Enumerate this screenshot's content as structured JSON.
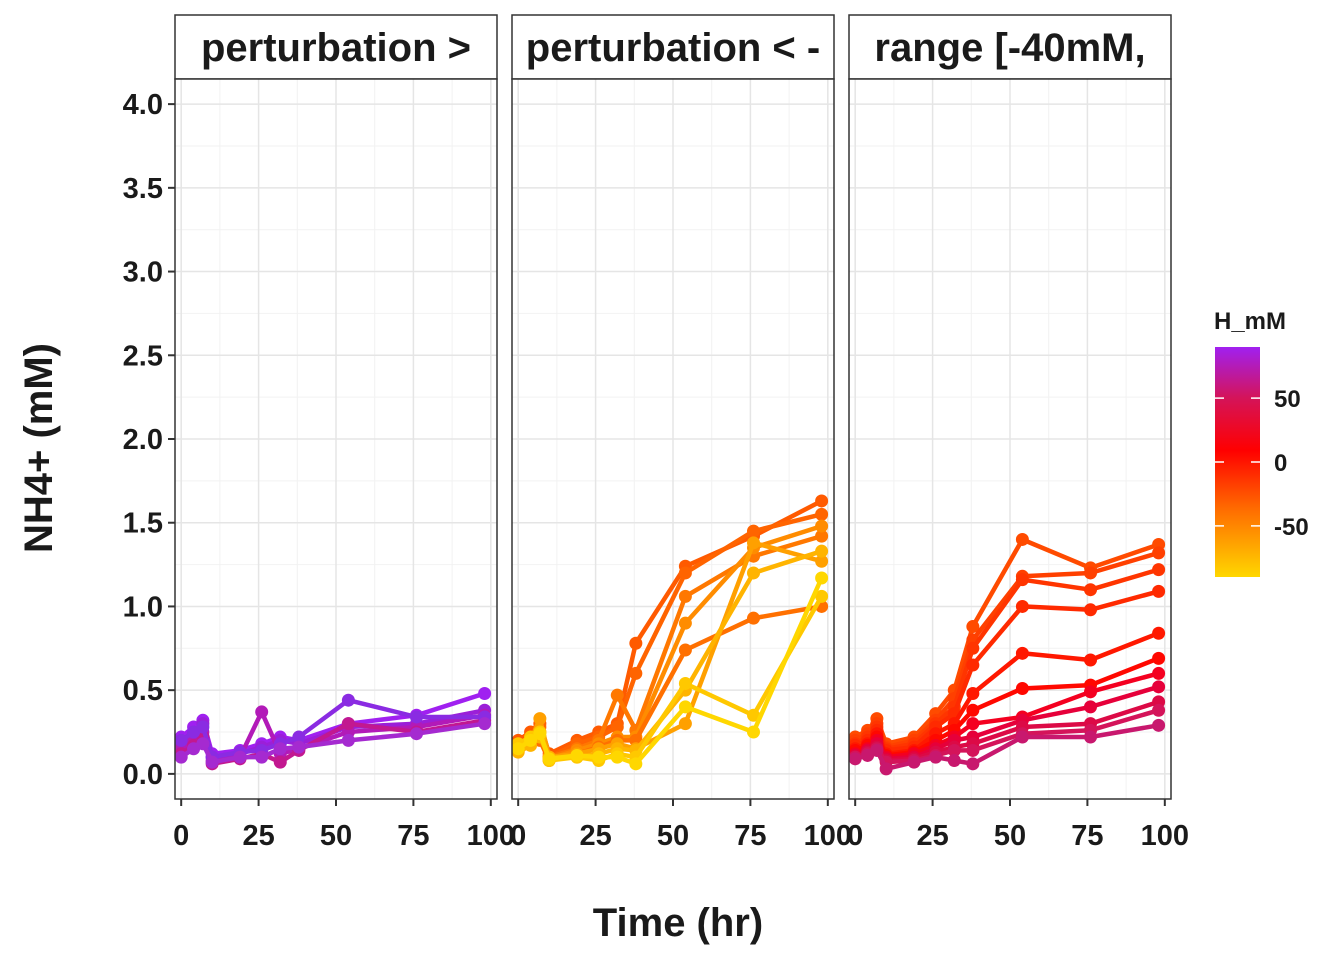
{
  "chart_data": {
    "type": "line",
    "xlabel": "Time (hr)",
    "ylabel": "NH4+ (mM)",
    "xlim": [
      -2,
      102
    ],
    "ylim": [
      -0.15,
      4.15
    ],
    "x_ticks": [
      0,
      25,
      50,
      75,
      100
    ],
    "x_tick_labels": [
      "0",
      "25",
      "50",
      "75",
      "100"
    ],
    "y_ticks": [
      0.0,
      0.5,
      1.0,
      1.5,
      2.0,
      2.5,
      3.0,
      3.5,
      4.0
    ],
    "y_tick_labels": [
      "0.0",
      "0.5",
      "1.0",
      "1.5",
      "2.0",
      "2.5",
      "3.0",
      "3.5",
      "4.0"
    ],
    "grid": true,
    "points_shown": true,
    "legend": {
      "title": "H_mM",
      "position": "right",
      "type": "colorbar",
      "range": [
        -90,
        90
      ],
      "ticks": [
        50,
        0,
        -50
      ],
      "tick_labels": [
        "50",
        "0",
        "-50"
      ],
      "colors": [
        "#ffd700",
        "#ff6a00",
        "#ff0000",
        "#d4145a",
        "#a020f0"
      ]
    },
    "panels": [
      {
        "strip_label": "perturbation >",
        "series": [
          {
            "color": "#a020f0",
            "x": [
              0,
              4,
              7,
              10,
              19,
              26,
              32,
              38,
              54,
              76,
              98
            ],
            "y": [
              0.22,
              0.28,
              0.32,
              0.12,
              0.14,
              0.18,
              0.22,
              0.2,
              0.3,
              0.35,
              0.48
            ]
          },
          {
            "color": "#9b1fd8",
            "x": [
              0,
              4,
              7,
              10,
              19,
              26,
              32,
              38,
              54,
              76,
              98
            ],
            "y": [
              0.18,
              0.24,
              0.3,
              0.1,
              0.12,
              0.16,
              0.2,
              0.18,
              0.28,
              0.3,
              0.38
            ]
          },
          {
            "color": "#b21ab8",
            "x": [
              0,
              4,
              7,
              10,
              19,
              26,
              32,
              38,
              54,
              76,
              98
            ],
            "y": [
              0.15,
              0.2,
              0.25,
              0.08,
              0.1,
              0.37,
              0.12,
              0.15,
              0.25,
              0.28,
              0.35
            ]
          },
          {
            "color": "#c21890",
            "x": [
              0,
              4,
              7,
              10,
              19,
              26,
              32,
              38,
              54,
              76,
              98
            ],
            "y": [
              0.12,
              0.17,
              0.22,
              0.06,
              0.09,
              0.12,
              0.07,
              0.14,
              0.3,
              0.25,
              0.32
            ]
          },
          {
            "color": "#8a2be2",
            "x": [
              0,
              4,
              7,
              10,
              19,
              26,
              32,
              38,
              54,
              76,
              98
            ],
            "y": [
              0.2,
              0.25,
              0.28,
              0.1,
              0.13,
              0.14,
              0.18,
              0.22,
              0.44,
              0.34,
              0.34
            ]
          },
          {
            "color": "#a52ad0",
            "x": [
              0,
              4,
              7,
              10,
              19,
              26,
              32,
              38,
              54,
              76,
              98
            ],
            "y": [
              0.1,
              0.15,
              0.18,
              0.07,
              0.1,
              0.1,
              0.15,
              0.16,
              0.2,
              0.24,
              0.3
            ]
          }
        ]
      },
      {
        "strip_label": "perturbation < -",
        "series": [
          {
            "color": "#ff5a00",
            "x": [
              0,
              4,
              7,
              10,
              19,
              26,
              32,
              38,
              54,
              76,
              98
            ],
            "y": [
              0.2,
              0.25,
              0.3,
              0.12,
              0.2,
              0.25,
              0.3,
              0.78,
              1.24,
              1.42,
              1.63
            ]
          },
          {
            "color": "#ff6400",
            "x": [
              0,
              4,
              7,
              10,
              19,
              26,
              32,
              38,
              54,
              76,
              98
            ],
            "y": [
              0.18,
              0.22,
              0.28,
              0.1,
              0.18,
              0.22,
              0.28,
              0.6,
              1.2,
              1.45,
              1.55
            ]
          },
          {
            "color": "#ff7800",
            "x": [
              0,
              4,
              7,
              10,
              19,
              26,
              32,
              38,
              54,
              76,
              98
            ],
            "y": [
              0.16,
              0.2,
              0.25,
              0.1,
              0.15,
              0.2,
              0.47,
              0.26,
              1.06,
              1.3,
              1.42
            ]
          },
          {
            "color": "#ff8c00",
            "x": [
              0,
              4,
              7,
              10,
              19,
              26,
              32,
              38,
              54,
              76,
              98
            ],
            "y": [
              0.15,
              0.2,
              0.22,
              0.09,
              0.14,
              0.18,
              0.22,
              0.22,
              0.9,
              1.35,
              1.48
            ]
          },
          {
            "color": "#ff7000",
            "x": [
              0,
              4,
              7,
              10,
              19,
              26,
              32,
              38,
              54,
              76,
              98
            ],
            "y": [
              0.14,
              0.18,
              0.2,
              0.08,
              0.12,
              0.16,
              0.2,
              0.2,
              0.74,
              0.93,
              1.0
            ]
          },
          {
            "color": "#ffa000",
            "x": [
              0,
              4,
              7,
              10,
              19,
              26,
              32,
              38,
              54,
              76,
              98
            ],
            "y": [
              0.16,
              0.2,
              0.33,
              0.1,
              0.12,
              0.15,
              0.18,
              0.15,
              0.3,
              1.38,
              1.27
            ]
          },
          {
            "color": "#ffb400",
            "x": [
              0,
              4,
              7,
              10,
              19,
              26,
              32,
              38,
              54,
              76,
              98
            ],
            "y": [
              0.13,
              0.17,
              0.22,
              0.1,
              0.1,
              0.12,
              0.15,
              0.14,
              0.5,
              1.2,
              1.33
            ]
          },
          {
            "color": "#ffc800",
            "x": [
              0,
              4,
              7,
              10,
              19,
              26,
              32,
              38,
              54,
              76,
              98
            ],
            "y": [
              0.18,
              0.22,
              0.25,
              0.08,
              0.1,
              0.08,
              0.12,
              0.1,
              0.54,
              0.35,
              1.06
            ]
          },
          {
            "color": "#ffd700",
            "x": [
              0,
              4,
              7,
              10,
              19,
              26,
              32,
              38,
              54,
              76,
              98
            ],
            "y": [
              0.15,
              0.2,
              0.24,
              0.09,
              0.11,
              0.1,
              0.1,
              0.06,
              0.4,
              0.25,
              1.17
            ]
          }
        ]
      },
      {
        "strip_label": "range [-40mM,",
        "series": [
          {
            "color": "#ff4b00",
            "x": [
              0,
              4,
              7,
              10,
              19,
              26,
              32,
              38,
              54,
              76,
              98
            ],
            "y": [
              0.22,
              0.26,
              0.33,
              0.18,
              0.22,
              0.36,
              0.5,
              0.88,
              1.4,
              1.23,
              1.37
            ]
          },
          {
            "color": "#ff4000",
            "x": [
              0,
              4,
              7,
              10,
              19,
              26,
              32,
              38,
              54,
              76,
              98
            ],
            "y": [
              0.2,
              0.24,
              0.3,
              0.16,
              0.2,
              0.32,
              0.45,
              0.8,
              1.18,
              1.2,
              1.32
            ]
          },
          {
            "color": "#ff3500",
            "x": [
              0,
              4,
              7,
              10,
              19,
              26,
              32,
              38,
              54,
              76,
              98
            ],
            "y": [
              0.18,
              0.22,
              0.28,
              0.15,
              0.18,
              0.3,
              0.4,
              0.75,
              1.16,
              1.1,
              1.22
            ]
          },
          {
            "color": "#ff2a00",
            "x": [
              0,
              4,
              7,
              10,
              19,
              26,
              32,
              38,
              54,
              76,
              98
            ],
            "y": [
              0.17,
              0.2,
              0.26,
              0.14,
              0.16,
              0.28,
              0.36,
              0.65,
              1.0,
              0.98,
              1.09
            ]
          },
          {
            "color": "#ff1800",
            "x": [
              0,
              4,
              7,
              10,
              19,
              26,
              32,
              38,
              54,
              76,
              98
            ],
            "y": [
              0.15,
              0.18,
              0.24,
              0.12,
              0.14,
              0.24,
              0.3,
              0.48,
              0.72,
              0.68,
              0.84
            ]
          },
          {
            "color": "#ff0800",
            "x": [
              0,
              4,
              7,
              10,
              19,
              26,
              32,
              38,
              54,
              76,
              98
            ],
            "y": [
              0.14,
              0.17,
              0.22,
              0.11,
              0.13,
              0.2,
              0.26,
              0.38,
              0.51,
              0.53,
              0.69
            ]
          },
          {
            "color": "#f40020",
            "x": [
              0,
              4,
              7,
              10,
              19,
              26,
              32,
              38,
              54,
              76,
              98
            ],
            "y": [
              0.12,
              0.15,
              0.2,
              0.1,
              0.12,
              0.17,
              0.22,
              0.3,
              0.34,
              0.49,
              0.6
            ]
          },
          {
            "color": "#e6003a",
            "x": [
              0,
              4,
              7,
              10,
              19,
              26,
              32,
              38,
              54,
              76,
              98
            ],
            "y": [
              0.11,
              0.14,
              0.18,
              0.09,
              0.1,
              0.15,
              0.2,
              0.22,
              0.32,
              0.4,
              0.52
            ]
          },
          {
            "color": "#dc0a46",
            "x": [
              0,
              4,
              7,
              10,
              19,
              26,
              32,
              38,
              54,
              76,
              98
            ],
            "y": [
              0.1,
              0.13,
              0.16,
              0.08,
              0.09,
              0.13,
              0.16,
              0.18,
              0.28,
              0.3,
              0.43
            ]
          },
          {
            "color": "#d4145a",
            "x": [
              0,
              4,
              7,
              10,
              19,
              26,
              32,
              38,
              54,
              76,
              98
            ],
            "y": [
              0.1,
              0.12,
              0.15,
              0.07,
              0.08,
              0.11,
              0.14,
              0.14,
              0.24,
              0.26,
              0.38
            ]
          },
          {
            "color": "#c8186e",
            "x": [
              0,
              4,
              7,
              10,
              19,
              26,
              32,
              38,
              54,
              76,
              98
            ],
            "y": [
              0.09,
              0.11,
              0.14,
              0.03,
              0.07,
              0.1,
              0.08,
              0.06,
              0.22,
              0.22,
              0.29
            ]
          }
        ]
      }
    ]
  }
}
